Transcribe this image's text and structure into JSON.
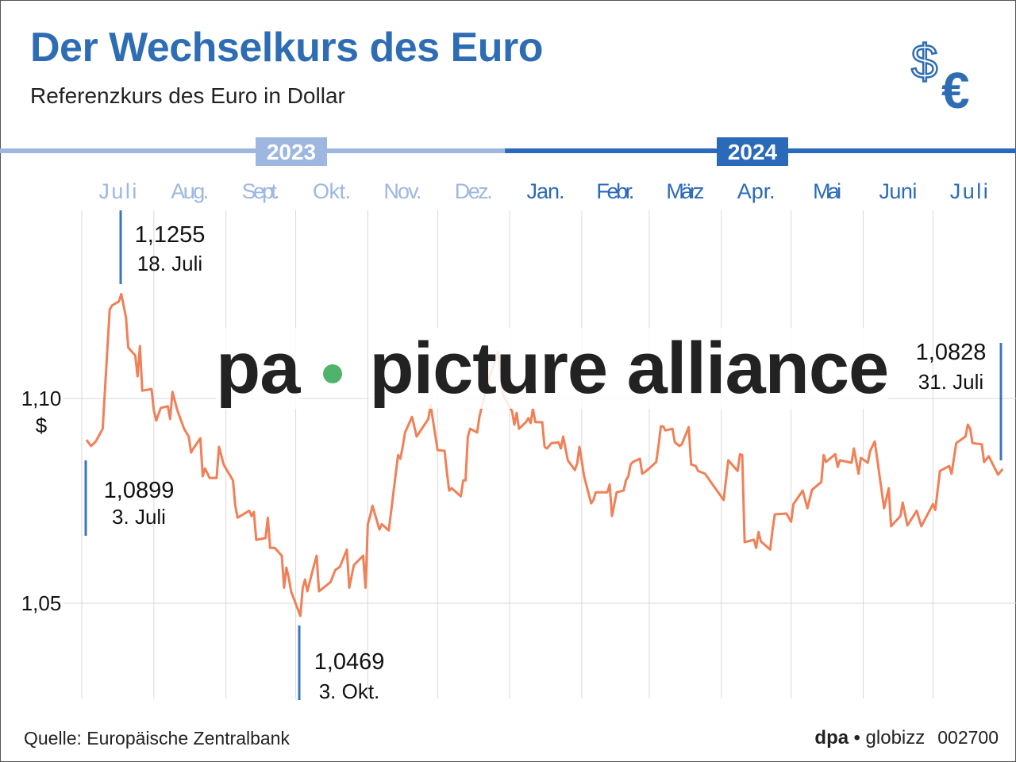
{
  "header": {
    "title": "Der Wechselkurs des Euro",
    "subtitle": "Referenzkurs des Euro in Dollar",
    "icon": "dollar-euro-icon"
  },
  "watermark": {
    "left": "pa",
    "right": "picture alliance"
  },
  "footer": {
    "source": "Quelle: Europäische Zentralbank",
    "brand_dpa": "dpa",
    "brand_globizz": "• globizz",
    "code": "002700"
  },
  "colors": {
    "title": "#2e6db4",
    "line": "#f08058",
    "annotation": "#3a75c4",
    "year_2023": "#9db7e0",
    "year_2024": "#2a6ab8",
    "grid": "#d9d9d9"
  },
  "chart_data": {
    "type": "line",
    "title": "Der Wechselkurs des Euro",
    "subtitle": "Referenzkurs des Euro in Dollar",
    "ylabel": "$",
    "ylim": [
      1.028,
      1.147
    ],
    "xlim": [
      "2023-07-01",
      "2024-07-31"
    ],
    "grid": true,
    "years": [
      {
        "label": "2023"
      },
      {
        "label": "2024"
      }
    ],
    "months": [
      {
        "label": "Juli",
        "year": "2023"
      },
      {
        "label": "Aug.",
        "year": "2023"
      },
      {
        "label": "Sept.",
        "year": "2023"
      },
      {
        "label": "Okt.",
        "year": "2023"
      },
      {
        "label": "Nov.",
        "year": "2023"
      },
      {
        "label": "Dez.",
        "year": "2023"
      },
      {
        "label": "Jan.",
        "year": "2024"
      },
      {
        "label": "Febr.",
        "year": "2024"
      },
      {
        "label": "März",
        "year": "2024"
      },
      {
        "label": "Apr.",
        "year": "2024"
      },
      {
        "label": "Mai",
        "year": "2024"
      },
      {
        "label": "Juni",
        "year": "2024"
      },
      {
        "label": "Juli",
        "year": "2024"
      }
    ],
    "yticks": [
      {
        "value": 1.1,
        "label": "1,10"
      },
      {
        "value": 1.05,
        "label": "1,05"
      }
    ],
    "annotations": [
      {
        "date": "2023-07-03",
        "value": "1,0899",
        "label": "3. Juli"
      },
      {
        "date": "2023-07-18",
        "value": "1,1255",
        "label": "18. Juli"
      },
      {
        "date": "2023-10-03",
        "value": "1,0469",
        "label": "3. Okt."
      },
      {
        "date": "2024-07-31",
        "value": "1,0828",
        "label": "31. Juli"
      }
    ],
    "series": [
      {
        "x": [
          "2023-07-03",
          "2023-07-05",
          "2023-07-07",
          "2023-07-10",
          "2023-07-11",
          "2023-07-13",
          "2023-07-14",
          "2023-07-17",
          "2023-07-18",
          "2023-07-20",
          "2023-07-21",
          "2023-07-24",
          "2023-07-25",
          "2023-07-26",
          "2023-07-27",
          "2023-07-31",
          "2023-08-01",
          "2023-08-02",
          "2023-08-04",
          "2023-08-07",
          "2023-08-08",
          "2023-08-09",
          "2023-08-11",
          "2023-08-14",
          "2023-08-16",
          "2023-08-17",
          "2023-08-18",
          "2023-08-21",
          "2023-08-22",
          "2023-08-23",
          "2023-08-25",
          "2023-08-28",
          "2023-08-29",
          "2023-08-31",
          "2023-09-04",
          "2023-09-05",
          "2023-09-06",
          "2023-09-11",
          "2023-09-12",
          "2023-09-13",
          "2023-09-14",
          "2023-09-18",
          "2023-09-19",
          "2023-09-20",
          "2023-09-22",
          "2023-09-25",
          "2023-09-26",
          "2023-09-27",
          "2023-09-28",
          "2023-09-29",
          "2023-10-03",
          "2023-10-04",
          "2023-10-05",
          "2023-10-06",
          "2023-10-09",
          "2023-10-10",
          "2023-10-11",
          "2023-10-13",
          "2023-10-16",
          "2023-10-18",
          "2023-10-20",
          "2023-10-23",
          "2023-10-24",
          "2023-10-26",
          "2023-10-30",
          "2023-10-31",
          "2023-11-01",
          "2023-11-02",
          "2023-11-03",
          "2023-11-06",
          "2023-11-07",
          "2023-11-10",
          "2023-11-14",
          "2023-11-15",
          "2023-11-16",
          "2023-11-17",
          "2023-11-20",
          "2023-11-22",
          "2023-11-27",
          "2023-11-28",
          "2023-12-01",
          "2023-12-04",
          "2023-12-05",
          "2023-12-06",
          "2023-12-07",
          "2023-12-11",
          "2023-12-12",
          "2023-12-13",
          "2023-12-14",
          "2023-12-15",
          "2023-12-18",
          "2023-12-19",
          "2023-12-21",
          "2023-12-22",
          "2023-12-27",
          "2023-12-29",
          "2024-01-02",
          "2024-01-03",
          "2024-01-04",
          "2024-01-05",
          "2024-01-08",
          "2024-01-09",
          "2024-01-10",
          "2024-01-11",
          "2024-01-12",
          "2024-01-15",
          "2024-01-16",
          "2024-01-17",
          "2024-01-19",
          "2024-01-22",
          "2024-01-23",
          "2024-01-24",
          "2024-01-26",
          "2024-01-29",
          "2024-01-30",
          "2024-01-31",
          "2024-02-02",
          "2024-02-05",
          "2024-02-06",
          "2024-02-07",
          "2024-02-12",
          "2024-02-13",
          "2024-02-14",
          "2024-02-16",
          "2024-02-19",
          "2024-02-20",
          "2024-02-21",
          "2024-02-22",
          "2024-02-23",
          "2024-02-26",
          "2024-02-27",
          "2024-02-28",
          "2024-03-01",
          "2024-03-04",
          "2024-03-05",
          "2024-03-06",
          "2024-03-07",
          "2024-03-08",
          "2024-03-11",
          "2024-03-12",
          "2024-03-14",
          "2024-03-15",
          "2024-03-18",
          "2024-03-19",
          "2024-03-21",
          "2024-03-22",
          "2024-03-25",
          "2024-04-02",
          "2024-04-04",
          "2024-04-08",
          "2024-04-09",
          "2024-04-10",
          "2024-04-11",
          "2024-04-15",
          "2024-04-16",
          "2024-04-17",
          "2024-04-18",
          "2024-04-22",
          "2024-04-23",
          "2024-04-24",
          "2024-04-29",
          "2024-05-01",
          "2024-05-02",
          "2024-05-06",
          "2024-05-08",
          "2024-05-10",
          "2024-05-14",
          "2024-05-15",
          "2024-05-16",
          "2024-05-20",
          "2024-05-21",
          "2024-05-22",
          "2024-05-27",
          "2024-05-28",
          "2024-05-30",
          "2024-05-31",
          "2024-06-03",
          "2024-06-04",
          "2024-06-06",
          "2024-06-10",
          "2024-06-12",
          "2024-06-13",
          "2024-06-17",
          "2024-06-18",
          "2024-06-20",
          "2024-06-24",
          "2024-06-26",
          "2024-06-27",
          "2024-07-01",
          "2024-07-02",
          "2024-07-04",
          "2024-07-08",
          "2024-07-09",
          "2024-07-11",
          "2024-07-15",
          "2024-07-16",
          "2024-07-17",
          "2024-07-18",
          "2024-07-22",
          "2024-07-23",
          "2024-07-25",
          "2024-07-29",
          "2024-07-31"
        ],
        "y": [
          1.0899,
          1.0884,
          1.0895,
          1.0926,
          1.1023,
          1.1217,
          1.1227,
          1.1237,
          1.1255,
          1.1198,
          1.1124,
          1.1105,
          1.1054,
          1.1128,
          1.1019,
          1.1023,
          1.0971,
          1.0946,
          1.0977,
          1.0981,
          1.095,
          1.1016,
          1.0973,
          1.0926,
          1.0907,
          1.0868,
          1.0878,
          1.0903,
          1.081,
          1.0829,
          1.0806,
          1.0806,
          1.0882,
          1.0839,
          1.08,
          1.0738,
          1.0709,
          1.0726,
          1.0713,
          1.0723,
          1.0655,
          1.0659,
          1.0709,
          1.0635,
          1.0635,
          1.0616,
          1.0538,
          1.0587,
          1.0562,
          1.0529,
          1.0469,
          1.0538,
          1.0558,
          1.0529,
          1.0596,
          1.0616,
          1.0529,
          1.0538,
          1.0552,
          1.0581,
          1.0589,
          1.0631,
          1.0538,
          1.0593,
          1.0616,
          1.0538,
          1.0693,
          1.0713,
          1.0738,
          1.068,
          1.0693,
          1.0678,
          1.0862,
          1.0853,
          1.0882,
          1.0917,
          1.0955,
          1.0907,
          1.095,
          1.0984,
          1.0874,
          1.0872,
          1.082,
          1.0775,
          1.0781,
          1.0761,
          1.08,
          1.08,
          1.0907,
          1.0926,
          1.0917,
          1.0955,
          1.1004,
          1.1029,
          1.1114,
          1.101,
          1.0969,
          1.0936,
          1.0965,
          1.0926,
          1.0942,
          1.0952,
          1.094,
          1.0975,
          1.0942,
          1.0942,
          1.0882,
          1.0878,
          1.0891,
          1.0893,
          1.0878,
          1.0907,
          1.0849,
          1.0825,
          1.0841,
          1.0882,
          1.081,
          1.0744,
          1.0752,
          1.0771,
          1.0771,
          1.079,
          1.0713,
          1.0771,
          1.0775,
          1.08,
          1.081,
          1.0839,
          1.0845,
          1.0853,
          1.0816,
          1.082,
          1.0829,
          1.0845,
          1.0884,
          1.0932,
          1.0932,
          1.0922,
          1.0926,
          1.0893,
          1.0884,
          1.0888,
          1.093,
          1.0839,
          1.0835,
          1.0823,
          1.0816,
          1.0752,
          1.0849,
          1.0823,
          1.0864,
          1.0862,
          1.0649,
          1.0655,
          1.0635,
          1.0674,
          1.0651,
          1.0631,
          1.0678,
          1.0717,
          1.0719,
          1.0699,
          1.0742,
          1.0775,
          1.0732,
          1.0777,
          1.0796,
          1.0862,
          1.0845,
          1.0864,
          1.0833,
          1.0849,
          1.0843,
          1.0878,
          1.0816,
          1.0855,
          1.0843,
          1.0872,
          1.0895,
          1.0732,
          1.0781,
          1.0688,
          1.0713,
          1.0746,
          1.069,
          1.0726,
          1.0688,
          1.0699,
          1.0742,
          1.0728,
          1.0823,
          1.0835,
          1.0816,
          1.0891,
          1.0907,
          1.0936,
          1.0926,
          1.0891,
          1.0888,
          1.0845,
          1.0859,
          1.0814,
          1.0828
        ]
      }
    ]
  }
}
